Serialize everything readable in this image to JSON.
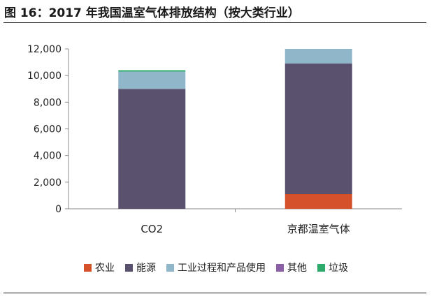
{
  "figure_title": "图 16：2017 年我国温室气体排放结构（按大类行业）",
  "colors": {
    "农业": "#d4512b",
    "能源": "#59516e",
    "工业过程和产品使用": "#8fb6c9",
    "其他": "#8a5fa6",
    "垃圾": "#2eab6a"
  },
  "chart_data": {
    "type": "bar",
    "stacked": true,
    "categories": [
      "CO2",
      "京都温室气体"
    ],
    "series": [
      {
        "name": "农业",
        "values": [
          0,
          1100
        ]
      },
      {
        "name": "能源",
        "values": [
          9000,
          9800
        ]
      },
      {
        "name": "工业过程和产品使用",
        "values": [
          1300,
          1100
        ]
      },
      {
        "name": "其他",
        "values": [
          0,
          0
        ]
      },
      {
        "name": "垃圾",
        "values": [
          100,
          0
        ]
      }
    ],
    "ylim": [
      0,
      12000
    ],
    "yticks": [
      0,
      2000,
      4000,
      6000,
      8000,
      10000,
      12000
    ],
    "ytick_labels": [
      "0",
      "2,000",
      "4,000",
      "6,000",
      "8,000",
      "10,000",
      "12,000"
    ],
    "grid": false,
    "legend": "bottom"
  }
}
